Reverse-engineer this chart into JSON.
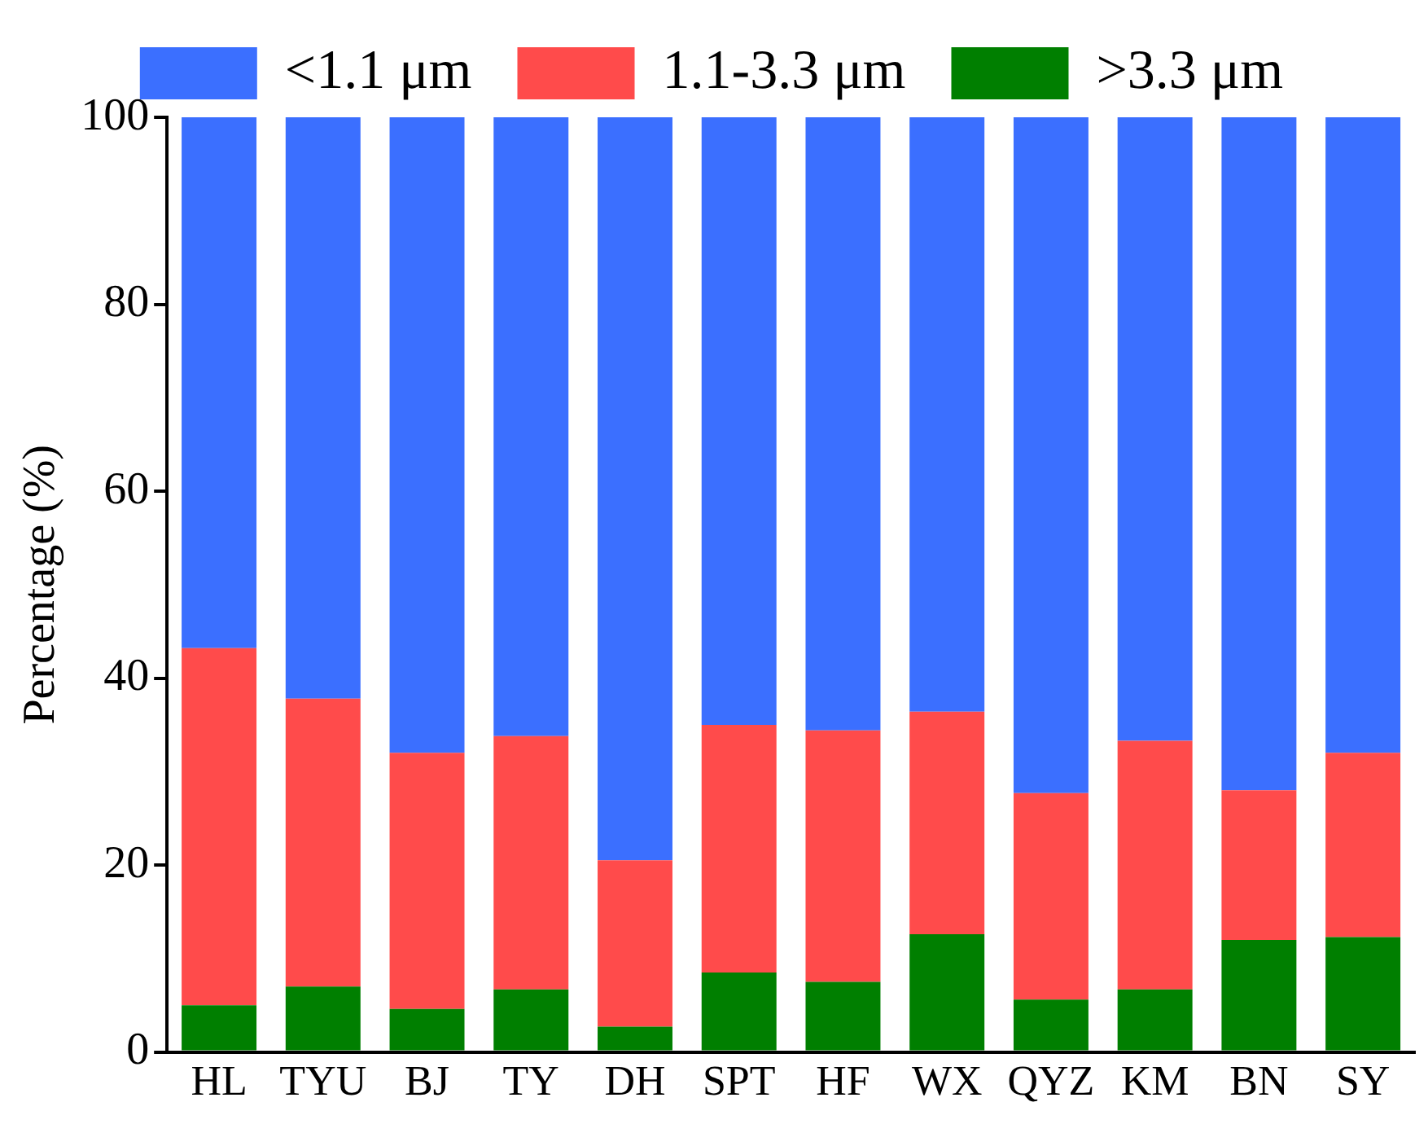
{
  "chart_data": {
    "type": "bar",
    "stacked": true,
    "ylabel": "Percentage (%)",
    "categories": [
      "HL",
      "TYU",
      "BJ",
      "TY",
      "DH",
      "SPT",
      "HF",
      "WX",
      "QYZ",
      "KM",
      "BN",
      "SY"
    ],
    "series": [
      {
        "name": ">3.3 μm",
        "color": "#007f00",
        "values": [
          5.0,
          7.0,
          4.6,
          6.7,
          2.7,
          8.5,
          7.5,
          12.6,
          5.6,
          6.7,
          12.0,
          12.3
        ]
      },
      {
        "name": "1.1-3.3 μm",
        "color": "#ff4b4b",
        "values": [
          38.2,
          30.8,
          27.4,
          27.1,
          17.8,
          26.5,
          26.9,
          23.8,
          22.1,
          26.6,
          16.0,
          19.7
        ]
      },
      {
        "name": "<1.1 μm",
        "color": "#3b6fff",
        "values": [
          56.8,
          62.2,
          68.0,
          66.2,
          79.5,
          65.0,
          65.6,
          63.6,
          72.3,
          66.7,
          72.0,
          68.0
        ]
      }
    ],
    "ylim": [
      0,
      100
    ],
    "yticks": [
      0,
      20,
      40,
      60,
      80,
      100
    ],
    "grid": false,
    "legend": "top"
  }
}
